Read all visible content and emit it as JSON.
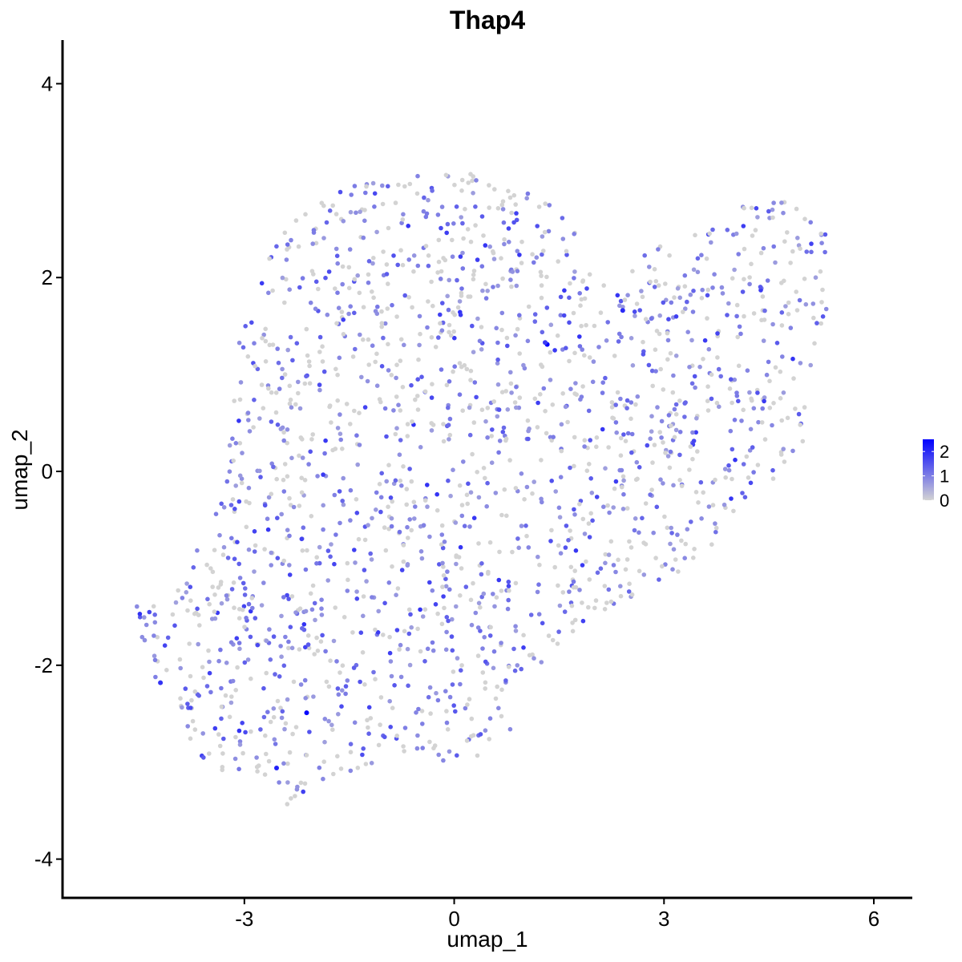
{
  "chart_data": {
    "type": "scatter",
    "title": "Thap4",
    "xlabel": "umap_1",
    "ylabel": "umap_2",
    "xlim": [
      -5.6,
      6.55
    ],
    "ylim": [
      -4.4,
      4.45
    ],
    "x_ticks": [
      -3,
      0,
      3,
      6
    ],
    "x_tick_labels": [
      "-3",
      "0",
      "3",
      "6"
    ],
    "y_ticks": [
      -4,
      -2,
      0,
      2,
      4
    ],
    "y_tick_labels": [
      "-4",
      "-2",
      "0",
      "2",
      "4"
    ],
    "grid": false,
    "legend": {
      "position": "right",
      "kind": "colorbar",
      "range": [
        0,
        2.5
      ],
      "ticks": [
        0,
        1,
        2
      ],
      "tick_labels": [
        "0",
        "1",
        "2"
      ],
      "colors": {
        "low": "#D3D3D3",
        "high": "#0000FF"
      }
    },
    "highlighted_points": [
      {
        "x": 1.33,
        "y": 1.31,
        "value": 2.5
      },
      {
        "x": 2.41,
        "y": 1.66,
        "value": 2.0
      },
      {
        "x": -2.11,
        "y": -2.49,
        "value": 2.4
      },
      {
        "x": -2.54,
        "y": -3.06,
        "value": 2.1
      },
      {
        "x": -4.2,
        "y": -2.18,
        "value": 1.9
      },
      {
        "x": 1.3,
        "y": 1.33,
        "value": 1.8
      }
    ],
    "region": {
      "outline": [
        [
          -4.75,
          -1.25
        ],
        [
          -4.4,
          -1.45
        ],
        [
          -3.9,
          -1.15
        ],
        [
          -3.55,
          -0.6
        ],
        [
          -3.25,
          -0.1
        ],
        [
          -3.15,
          0.8
        ],
        [
          -3.05,
          1.5
        ],
        [
          -2.8,
          2.0
        ],
        [
          -2.4,
          2.55
        ],
        [
          -1.6,
          2.95
        ],
        [
          -0.6,
          3.05
        ],
        [
          0.2,
          3.12
        ],
        [
          0.8,
          2.95
        ],
        [
          1.3,
          2.8
        ],
        [
          1.75,
          2.5
        ],
        [
          1.8,
          2.1
        ],
        [
          2.3,
          2.0
        ],
        [
          2.8,
          2.3
        ],
        [
          3.4,
          2.45
        ],
        [
          3.9,
          2.55
        ],
        [
          4.4,
          2.95
        ],
        [
          4.9,
          2.8
        ],
        [
          5.35,
          2.45
        ],
        [
          5.4,
          1.9
        ],
        [
          5.2,
          1.3
        ],
        [
          5.15,
          0.8
        ],
        [
          4.95,
          0.2
        ],
        [
          4.6,
          -0.1
        ],
        [
          4.0,
          -0.4
        ],
        [
          3.6,
          -0.85
        ],
        [
          3.0,
          -1.15
        ],
        [
          2.5,
          -1.35
        ],
        [
          1.6,
          -1.7
        ],
        [
          1.0,
          -2.2
        ],
        [
          0.8,
          -2.7
        ],
        [
          0.4,
          -2.95
        ],
        [
          -0.1,
          -3.0
        ],
        [
          -0.8,
          -2.95
        ],
        [
          -1.5,
          -3.1
        ],
        [
          -1.9,
          -3.3
        ],
        [
          -2.3,
          -3.5
        ],
        [
          -2.8,
          -3.2
        ],
        [
          -3.3,
          -3.1
        ],
        [
          -3.8,
          -2.85
        ],
        [
          -4.2,
          -2.3
        ],
        [
          -4.45,
          -1.75
        ]
      ],
      "approx_point_count": 1900
    }
  }
}
